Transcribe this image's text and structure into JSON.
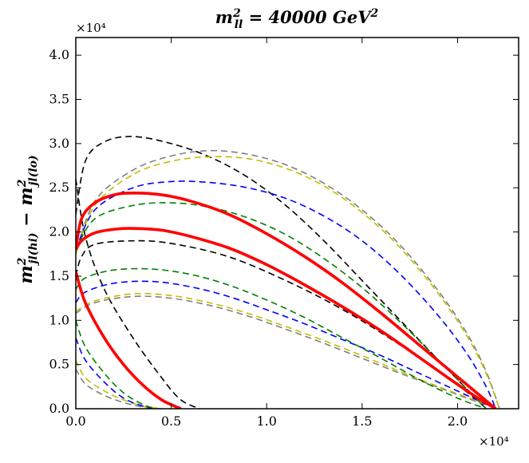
{
  "chart_data": {
    "type": "line",
    "title": "m²ll = 40000 GeV²",
    "title_main": "m",
    "title_sup": "2",
    "title_sub": "ll",
    "title_rest": " = 40000 GeV",
    "title_rest_sup": "2",
    "xlabel": "",
    "ylabel": "m²jl(hi) − m²jl(lo)",
    "ylabel_parts": {
      "m1": "m",
      "sup1": "2",
      "sub1": "jl(hi)",
      "minus": " − ",
      "m2": "m",
      "sup2": "2",
      "sub2": "jl(lo)"
    },
    "x_multiplier": "×10⁴",
    "y_multiplier": "×10⁴",
    "xlim": [
      0,
      2.32
    ],
    "ylim": [
      0,
      4.2
    ],
    "xticks": [
      0.0,
      0.5,
      1.0,
      1.5,
      2.0
    ],
    "xtick_labels": [
      "0.0",
      "0.5",
      "1.0",
      "1.5",
      "2.0"
    ],
    "yticks": [
      0.0,
      0.5,
      1.0,
      1.5,
      2.0,
      2.5,
      3.0,
      3.5,
      4.0
    ],
    "ytick_labels": [
      "0.0",
      "0.5",
      "1.0",
      "1.5",
      "2.0",
      "2.5",
      "3.0",
      "3.5",
      "4.0"
    ],
    "series": [
      {
        "name": "black-upper",
        "color": "#000000",
        "dashed": true,
        "x": [
          0.0,
          0.05,
          0.15,
          0.3,
          0.5,
          0.7,
          0.9,
          1.1,
          1.3,
          1.5,
          1.7,
          1.9,
          2.05,
          2.15
        ],
        "y": [
          2.2,
          2.8,
          3.02,
          3.08,
          3.0,
          2.85,
          2.62,
          2.3,
          1.9,
          1.45,
          1.0,
          0.55,
          0.22,
          0.0
        ]
      },
      {
        "name": "black-lower",
        "color": "#000000",
        "dashed": true,
        "x": [
          0.0,
          0.03,
          0.1,
          0.3,
          0.5,
          0.8,
          1.1,
          1.4,
          1.7,
          1.95,
          2.1,
          2.15
        ],
        "y": [
          1.5,
          1.72,
          1.86,
          1.9,
          1.87,
          1.72,
          1.45,
          1.12,
          0.72,
          0.35,
          0.1,
          0.0
        ]
      },
      {
        "name": "black-inner",
        "color": "#000000",
        "dashed": true,
        "x": [
          0.0,
          0.05,
          0.15,
          0.3,
          0.45,
          0.55,
          0.65
        ],
        "y": [
          2.6,
          1.95,
          1.35,
          0.8,
          0.35,
          0.1,
          0.0
        ]
      },
      {
        "name": "gray-upper",
        "color": "#808080",
        "dashed": true,
        "x": [
          0.0,
          0.1,
          0.3,
          0.5,
          0.7,
          0.9,
          1.1,
          1.3,
          1.5,
          1.7,
          1.9,
          2.05,
          2.15,
          2.22
        ],
        "y": [
          1.75,
          2.35,
          2.7,
          2.86,
          2.92,
          2.88,
          2.76,
          2.55,
          2.25,
          1.85,
          1.33,
          0.85,
          0.42,
          0.0
        ]
      },
      {
        "name": "gray-lower",
        "color": "#808080",
        "dashed": true,
        "x": [
          0.0,
          0.1,
          0.3,
          0.5,
          0.7,
          0.9,
          1.1,
          1.3,
          1.5,
          1.7,
          1.9,
          2.1,
          2.22
        ],
        "y": [
          1.08,
          1.2,
          1.27,
          1.25,
          1.17,
          1.05,
          0.9,
          0.74,
          0.57,
          0.4,
          0.24,
          0.08,
          0.0
        ]
      },
      {
        "name": "gray-inner",
        "color": "#808080",
        "dashed": true,
        "x": [
          0.0,
          0.05,
          0.15,
          0.25,
          0.35,
          0.45
        ],
        "y": [
          0.45,
          0.28,
          0.15,
          0.07,
          0.02,
          0.0
        ]
      },
      {
        "name": "yellow-upper",
        "color": "#bfbf00",
        "dashed": true,
        "x": [
          0.0,
          0.1,
          0.3,
          0.5,
          0.7,
          0.9,
          1.1,
          1.3,
          1.5,
          1.7,
          1.9,
          2.05,
          2.15,
          2.22
        ],
        "y": [
          1.75,
          2.3,
          2.65,
          2.8,
          2.85,
          2.83,
          2.72,
          2.52,
          2.22,
          1.82,
          1.3,
          0.82,
          0.4,
          0.0
        ]
      },
      {
        "name": "yellow-lower",
        "color": "#bfbf00",
        "dashed": true,
        "x": [
          0.0,
          0.1,
          0.3,
          0.5,
          0.7,
          0.9,
          1.1,
          1.3,
          1.5,
          1.7,
          1.9,
          2.1,
          2.22
        ],
        "y": [
          1.1,
          1.22,
          1.3,
          1.28,
          1.2,
          1.08,
          0.93,
          0.77,
          0.6,
          0.42,
          0.25,
          0.09,
          0.0
        ]
      },
      {
        "name": "yellow-inner",
        "color": "#bfbf00",
        "dashed": true,
        "x": [
          0.0,
          0.05,
          0.15,
          0.25,
          0.35,
          0.45
        ],
        "y": [
          0.55,
          0.35,
          0.2,
          0.1,
          0.03,
          0.0
        ]
      },
      {
        "name": "blue-upper",
        "color": "#0000ff",
        "dashed": true,
        "x": [
          0.0,
          0.1,
          0.3,
          0.5,
          0.7,
          0.9,
          1.1,
          1.3,
          1.5,
          1.7,
          1.9,
          2.05,
          2.15,
          2.2
        ],
        "y": [
          1.8,
          2.25,
          2.5,
          2.57,
          2.56,
          2.5,
          2.38,
          2.18,
          1.9,
          1.52,
          1.05,
          0.62,
          0.25,
          0.0
        ]
      },
      {
        "name": "blue-lower",
        "color": "#0000ff",
        "dashed": true,
        "x": [
          0.0,
          0.05,
          0.2,
          0.4,
          0.6,
          0.8,
          1.0,
          1.2,
          1.4,
          1.6,
          1.8,
          2.0,
          2.15,
          2.2
        ],
        "y": [
          1.2,
          1.32,
          1.42,
          1.44,
          1.38,
          1.27,
          1.12,
          0.96,
          0.78,
          0.6,
          0.4,
          0.2,
          0.05,
          0.0
        ]
      },
      {
        "name": "blue-inner",
        "color": "#0000ff",
        "dashed": true,
        "x": [
          0.0,
          0.05,
          0.15,
          0.25,
          0.35,
          0.4
        ],
        "y": [
          0.8,
          0.55,
          0.3,
          0.12,
          0.03,
          0.0
        ]
      },
      {
        "name": "green-upper",
        "color": "#008000",
        "dashed": true,
        "x": [
          0.0,
          0.1,
          0.3,
          0.5,
          0.7,
          0.9,
          1.1,
          1.3,
          1.5,
          1.7,
          1.9,
          2.05,
          2.15
        ],
        "y": [
          1.8,
          2.15,
          2.3,
          2.33,
          2.28,
          2.16,
          1.97,
          1.7,
          1.37,
          0.98,
          0.55,
          0.22,
          0.0
        ]
      },
      {
        "name": "green-lower",
        "color": "#008000",
        "dashed": true,
        "x": [
          0.0,
          0.05,
          0.2,
          0.4,
          0.6,
          0.8,
          1.0,
          1.2,
          1.4,
          1.6,
          1.8,
          2.0,
          2.15
        ],
        "y": [
          1.35,
          1.48,
          1.57,
          1.58,
          1.52,
          1.4,
          1.23,
          1.03,
          0.8,
          0.57,
          0.33,
          0.12,
          0.0
        ]
      },
      {
        "name": "green-inner",
        "color": "#008000",
        "dashed": true,
        "x": [
          0.0,
          0.05,
          0.15,
          0.25,
          0.35,
          0.42
        ],
        "y": [
          1.0,
          0.7,
          0.4,
          0.18,
          0.05,
          0.0
        ]
      },
      {
        "name": "red-upper",
        "color": "#ff0000",
        "dashed": false,
        "x": [
          0.0,
          0.03,
          0.1,
          0.2,
          0.3,
          0.45,
          0.6,
          0.8,
          1.0,
          1.2,
          1.4,
          1.6,
          1.8,
          1.95,
          2.1,
          2.2
        ],
        "y": [
          1.8,
          2.15,
          2.33,
          2.42,
          2.44,
          2.42,
          2.35,
          2.2,
          1.98,
          1.72,
          1.42,
          1.08,
          0.72,
          0.45,
          0.18,
          0.0
        ]
      },
      {
        "name": "red-lower",
        "color": "#ff0000",
        "dashed": false,
        "x": [
          0.0,
          0.03,
          0.1,
          0.2,
          0.3,
          0.45,
          0.6,
          0.8,
          1.0,
          1.2,
          1.4,
          1.6,
          1.8,
          1.95,
          2.1,
          2.2
        ],
        "y": [
          1.8,
          1.9,
          1.99,
          2.03,
          2.04,
          2.02,
          1.95,
          1.82,
          1.63,
          1.4,
          1.15,
          0.88,
          0.58,
          0.35,
          0.13,
          0.0
        ]
      },
      {
        "name": "red-inner",
        "color": "#ff0000",
        "dashed": false,
        "x": [
          0.0,
          0.05,
          0.15,
          0.25,
          0.35,
          0.45,
          0.55
        ],
        "y": [
          1.55,
          1.2,
          0.8,
          0.5,
          0.27,
          0.1,
          0.0
        ]
      }
    ]
  }
}
